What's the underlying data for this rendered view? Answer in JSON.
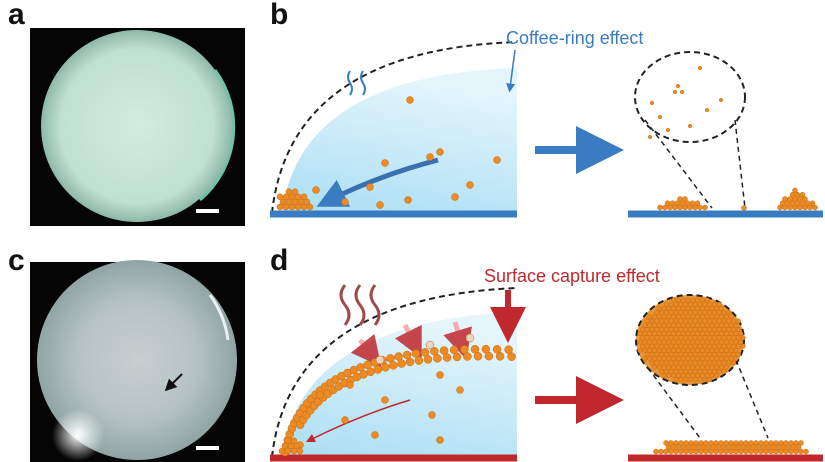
{
  "panels": [
    {
      "label": "a"
    },
    {
      "label": "b",
      "annotation": "Coffee-ring effect"
    },
    {
      "label": "c"
    },
    {
      "label": "d",
      "annotation": "Surface capture effect"
    }
  ]
}
